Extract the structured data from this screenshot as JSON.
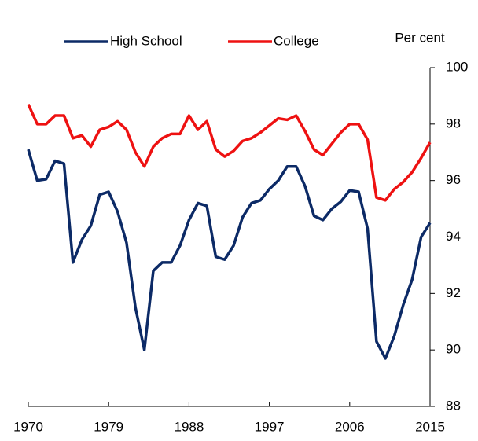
{
  "chart_data": {
    "type": "line",
    "y_axis_label": "Per cent",
    "x": [
      1970,
      1971,
      1972,
      1973,
      1974,
      1975,
      1976,
      1977,
      1978,
      1979,
      1980,
      1981,
      1982,
      1983,
      1984,
      1985,
      1986,
      1987,
      1988,
      1989,
      1990,
      1991,
      1992,
      1993,
      1994,
      1995,
      1996,
      1997,
      1998,
      1999,
      2000,
      2001,
      2002,
      2003,
      2004,
      2005,
      2006,
      2007,
      2008,
      2009,
      2010,
      2011,
      2012,
      2013,
      2014,
      2015
    ],
    "series": [
      {
        "name": "High School",
        "color": "#0c2a66",
        "values": [
          97.1,
          96.0,
          96.05,
          96.7,
          96.6,
          93.1,
          93.9,
          94.4,
          95.5,
          95.6,
          94.9,
          93.8,
          91.5,
          90.0,
          92.8,
          93.1,
          93.1,
          93.7,
          94.6,
          95.2,
          95.1,
          93.3,
          93.2,
          93.7,
          94.7,
          95.2,
          95.3,
          95.7,
          96.0,
          96.5,
          96.5,
          95.8,
          94.75,
          94.6,
          95.0,
          95.25,
          95.65,
          95.6,
          94.3,
          90.3,
          89.7,
          90.5,
          91.6,
          92.5,
          94.0,
          94.5
        ]
      },
      {
        "name": "College",
        "color": "#ee1111",
        "values": [
          98.7,
          98.0,
          98.0,
          98.3,
          98.3,
          97.5,
          97.6,
          97.2,
          97.8,
          97.9,
          98.1,
          97.8,
          97.0,
          96.5,
          97.2,
          97.5,
          97.65,
          97.65,
          98.3,
          97.8,
          98.1,
          97.1,
          96.85,
          97.05,
          97.4,
          97.5,
          97.7,
          97.95,
          98.2,
          98.15,
          98.3,
          97.75,
          97.1,
          96.9,
          97.3,
          97.7,
          98.0,
          98.0,
          97.45,
          95.4,
          95.3,
          95.7,
          95.95,
          96.3,
          96.8,
          97.35
        ]
      }
    ],
    "xlim": [
      1970,
      2015
    ],
    "xticks": [
      1970,
      1979,
      1988,
      1997,
      2006,
      2015
    ],
    "ylim": [
      88,
      100
    ],
    "yticks": [
      88,
      90,
      92,
      94,
      96,
      98,
      100
    ],
    "grid": false,
    "legend": "top"
  }
}
